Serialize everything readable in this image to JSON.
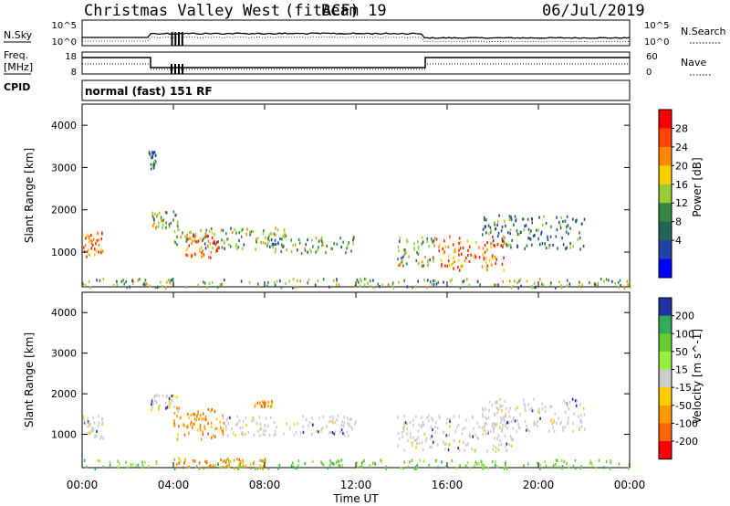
{
  "header": {
    "station": "Christmas Valley West",
    "fit": "(fitACF)",
    "beam": "Beam 19",
    "date": "06/Jul/2019"
  },
  "noise_panel": {
    "left_label": "N.Sky",
    "right_label": "N.Search",
    "left_ticks": [
      "10^5",
      "10^0"
    ],
    "right_ticks": [
      "10^5",
      "10^0"
    ]
  },
  "freq_panel": {
    "left_label_1": "Freq.",
    "left_label_2": "[MHz]",
    "right_label": "Nave",
    "left_ticks": [
      "18",
      "8"
    ],
    "right_ticks": [
      "60",
      "0"
    ]
  },
  "cpid": {
    "label": "CPID",
    "value": "normal (fast) 151 RF"
  },
  "chart_data": [
    {
      "type": "heatmap",
      "ylabel": "Slant Range [km]",
      "yticks": [
        1000,
        2000,
        3000,
        4000
      ],
      "ylim": [
        180,
        4500
      ],
      "colorbar": {
        "label": "Power [dB]",
        "ticks": [
          "28",
          "24",
          "20",
          "16",
          "12",
          "8",
          "4"
        ],
        "colors": [
          "#ff0000",
          "#ff4400",
          "#ff8800",
          "#ffcc00",
          "#99cc33",
          "#338844",
          "#226655",
          "#2244aa",
          "#0000ff"
        ]
      },
      "regions": [
        {
          "t0": 0.0,
          "t1": 0.9,
          "r0": 900,
          "r1": 1500,
          "level": "high"
        },
        {
          "t0": 2.9,
          "t1": 3.2,
          "r0": 3000,
          "r1": 3400,
          "level": "low"
        },
        {
          "t0": 3.0,
          "t1": 4.2,
          "r0": 1600,
          "r1": 2000,
          "level": "mid"
        },
        {
          "t0": 4.0,
          "t1": 9.0,
          "r0": 1100,
          "r1": 1600,
          "level": "mid"
        },
        {
          "t0": 4.5,
          "t1": 6.0,
          "r0": 900,
          "r1": 1500,
          "level": "high"
        },
        {
          "t0": 8.0,
          "t1": 12.0,
          "r0": 1000,
          "r1": 1400,
          "level": "mid"
        },
        {
          "t0": 13.8,
          "t1": 15.5,
          "r0": 700,
          "r1": 1400,
          "level": "mid"
        },
        {
          "t0": 15.5,
          "t1": 18.5,
          "r0": 600,
          "r1": 1400,
          "level": "high"
        },
        {
          "t0": 17.5,
          "t1": 22.0,
          "r0": 1100,
          "r1": 1900,
          "level": "low"
        },
        {
          "t0": 0.0,
          "t1": 24.0,
          "r0": 180,
          "r1": 400,
          "level": "mid"
        }
      ]
    },
    {
      "type": "heatmap",
      "ylabel": "Slant Range [km]",
      "xlabel": "Time UT",
      "xticks": [
        "00:00",
        "04:00",
        "08:00",
        "12:00",
        "16:00",
        "20:00",
        "00:00"
      ],
      "yticks": [
        1000,
        2000,
        3000,
        4000
      ],
      "ylim": [
        180,
        4500
      ],
      "colorbar": {
        "label": "Velocity [m s^-1]",
        "ticks": [
          "200",
          "100",
          "50",
          "15",
          "-15",
          "-50",
          "-100",
          "-200"
        ],
        "colors": [
          "#2233aa",
          "#33aa55",
          "#66cc33",
          "#99ee44",
          "#cccccc",
          "#ffcc00",
          "#ff9900",
          "#ff6600",
          "#ff0000"
        ]
      },
      "regions": [
        {
          "t0": 0.0,
          "t1": 0.9,
          "r0": 900,
          "r1": 1500,
          "level": "ground"
        },
        {
          "t0": 3.0,
          "t1": 4.2,
          "r0": 1600,
          "r1": 2000,
          "level": "ground"
        },
        {
          "t0": 4.0,
          "t1": 6.2,
          "r0": 900,
          "r1": 1700,
          "level": "neg"
        },
        {
          "t0": 6.0,
          "t1": 12.0,
          "r0": 1000,
          "r1": 1500,
          "level": "ground"
        },
        {
          "t0": 7.5,
          "t1": 8.3,
          "r0": 1700,
          "r1": 1850,
          "level": "neg"
        },
        {
          "t0": 13.8,
          "t1": 19.0,
          "r0": 600,
          "r1": 1500,
          "level": "ground"
        },
        {
          "t0": 17.5,
          "t1": 22.0,
          "r0": 1100,
          "r1": 1900,
          "level": "ground"
        },
        {
          "t0": 0.0,
          "t1": 24.0,
          "r0": 180,
          "r1": 400,
          "level": "pos"
        },
        {
          "t0": 4.0,
          "t1": 8.0,
          "r0": 200,
          "r1": 450,
          "level": "neg"
        }
      ]
    }
  ]
}
